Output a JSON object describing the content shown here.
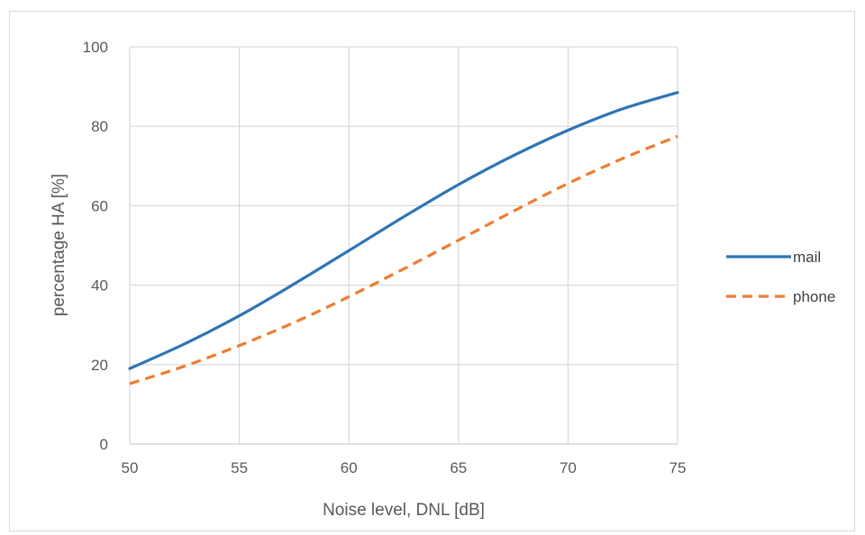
{
  "chart_data": {
    "type": "line",
    "title": "",
    "xlabel": "Noise level, DNL [dB]",
    "ylabel": "percentage HA [%]",
    "xlim": [
      50,
      75
    ],
    "ylim": [
      0,
      100
    ],
    "x_ticks": [
      "50",
      "55",
      "60",
      "65",
      "70",
      "75"
    ],
    "y_ticks": [
      "0",
      "20",
      "40",
      "60",
      "80",
      "100"
    ],
    "grid": true,
    "legend_position": "right",
    "series": [
      {
        "name": "mail",
        "color": "#2e75b6",
        "style": "solid",
        "points": [
          [
            50,
            19
          ],
          [
            52.5,
            25.2
          ],
          [
            55,
            32.3
          ],
          [
            57.5,
            40.3
          ],
          [
            60,
            48.7
          ],
          [
            62.5,
            57.2
          ],
          [
            65,
            65.3
          ],
          [
            67.5,
            72.6
          ],
          [
            70,
            79
          ],
          [
            72.5,
            84.4
          ],
          [
            75,
            88.5
          ]
        ]
      },
      {
        "name": "phone",
        "color": "#ed7d31",
        "style": "dashed",
        "points": [
          [
            50,
            15.2
          ],
          [
            52.5,
            19.6
          ],
          [
            55,
            24.8
          ],
          [
            57.5,
            30.6
          ],
          [
            60,
            37.1
          ],
          [
            62.5,
            44.1
          ],
          [
            65,
            51.3
          ],
          [
            67.5,
            58.6
          ],
          [
            70,
            65.6
          ],
          [
            72.5,
            71.9
          ],
          [
            75,
            77.5
          ]
        ]
      }
    ]
  }
}
